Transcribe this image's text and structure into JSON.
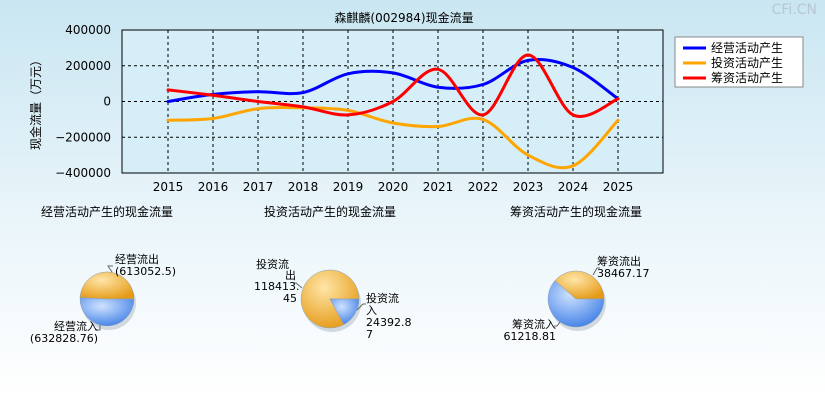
{
  "watermark": "CFi.CN",
  "chart_data": [
    {
      "type": "line",
      "title": "森麒麟(002984)现金流量",
      "ylabel": "现金流量（万元）",
      "xlabel": "",
      "x": [
        "2015",
        "2016",
        "2017",
        "2018",
        "2019",
        "2020",
        "2021",
        "2022",
        "2023",
        "2024",
        "2025"
      ],
      "y_ticks": [
        "400000",
        "200000",
        "0",
        "−200000",
        "−400000"
      ],
      "ylim": [
        -400000,
        400000
      ],
      "grid": true,
      "legend_position": "top-right",
      "series": [
        {
          "name": "经营活动产生",
          "color": "#0000ff",
          "values": [
            0,
            40000,
            55000,
            50000,
            155000,
            160000,
            80000,
            95000,
            230000,
            190000,
            15000
          ]
        },
        {
          "name": "投资活动产生",
          "color": "#ffa500",
          "values": [
            -105000,
            -95000,
            -40000,
            -35000,
            -50000,
            -120000,
            -140000,
            -100000,
            -300000,
            -360000,
            -105000
          ]
        },
        {
          "name": "筹资活动产生",
          "color": "#ff0000",
          "values": [
            65000,
            35000,
            0,
            -30000,
            -75000,
            0,
            180000,
            -75000,
            260000,
            -75000,
            15000
          ]
        }
      ]
    },
    {
      "type": "pie",
      "title": "经营活动产生的现金流量",
      "slices": [
        {
          "label": "经营流出",
          "value_text": "(613052.5)",
          "value": 613052.5
        },
        {
          "label": "经营流入",
          "value_text": "(632828.76)",
          "value": 632828.76
        }
      ]
    },
    {
      "type": "pie",
      "title": "投资活动产生的现金流量",
      "slices": [
        {
          "label": "投资流出",
          "value_text": "118413.45",
          "value": 118413.45
        },
        {
          "label": "投资流入",
          "value_text": "24392.87",
          "value": 24392.87
        }
      ]
    },
    {
      "type": "pie",
      "title": "筹资活动产生的现金流量",
      "slices": [
        {
          "label": "筹资流出",
          "value_text": "38467.17",
          "value": 38467.17
        },
        {
          "label": "筹资流入",
          "value_text": "61218.81",
          "value": 61218.81
        }
      ]
    }
  ]
}
